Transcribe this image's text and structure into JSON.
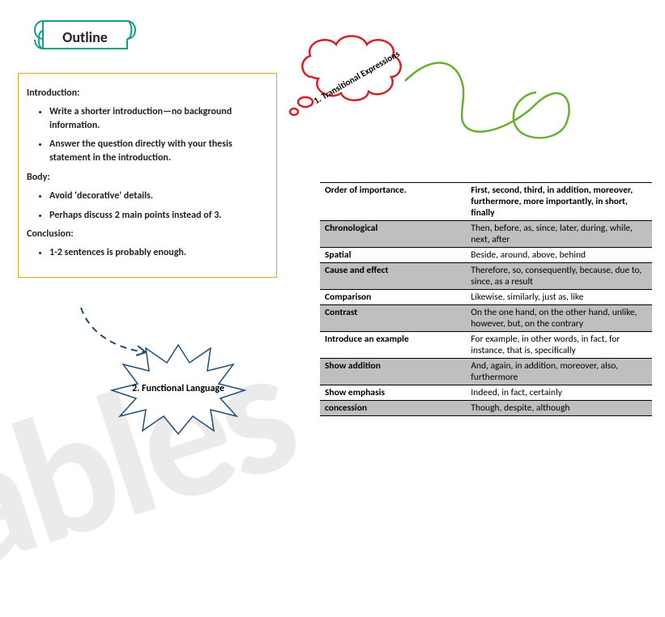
{
  "banner": {
    "title": "Outline",
    "stroke": "#14a085",
    "stroke_width": 2
  },
  "outline": {
    "border_color": "#e6a817",
    "intro_h": "Introduction:",
    "intro_items": [
      "Write a shorter introduction—no background information.",
      "Answer the question directly with your thesis statement in the introduction."
    ],
    "body_h": "Body:",
    "body_items": [
      "Avoid 'decorative' details.",
      "Perhaps discuss 2 main points instead of 3."
    ],
    "concl_h": "Conclusion:",
    "concl_items": [
      "1-2 sentences is probably enough."
    ]
  },
  "cloud": {
    "label": "1.   Transitional Expressions",
    "stroke": "#d62027",
    "stroke_width": 2.5
  },
  "squiggle": {
    "stroke": "#66b032",
    "stroke_width": 2.5
  },
  "dash_arrow": {
    "stroke": "#1f4e79",
    "stroke_width": 2
  },
  "starburst": {
    "label": "2.   Functional Language",
    "stroke": "#1f4e79",
    "stroke_width": 1.5
  },
  "table": {
    "header_bg": "#bfbfbf",
    "rows": [
      {
        "cat": "Order of importance.",
        "words": "First, second, third, in addition, moreover, furthermore, more importantly, in short, finally",
        "shade": false
      },
      {
        "cat": "Chronological",
        "words": "Then, before, as, since, later, during, while, next, after",
        "shade": true
      },
      {
        "cat": "Spatial",
        "words": "Beside, around, above, behind",
        "shade": false
      },
      {
        "cat": "Cause and effect",
        "words": "Therefore, so, consequently, because, due to, since, as a result",
        "shade": true
      },
      {
        "cat": "Comparison",
        "words": "Likewise, similarly, just as, like",
        "shade": false
      },
      {
        "cat": "Contrast",
        "words": "On the one hand, on the other hand, unlike, however, but, on the contrary",
        "shade": true
      },
      {
        "cat": "Introduce an example",
        "words": "For example, in other words, in fact, for instance, that is, specifically",
        "shade": false
      },
      {
        "cat": "Show addition",
        "words": "And, again, in addition, moreover, also, furthermore",
        "shade": true
      },
      {
        "cat": "Show emphasis",
        "words": "Indeed, in fact, certainly",
        "shade": false
      },
      {
        "cat": "concession",
        "words": "Though, despite, although",
        "shade": true
      }
    ]
  },
  "watermark": "ables"
}
